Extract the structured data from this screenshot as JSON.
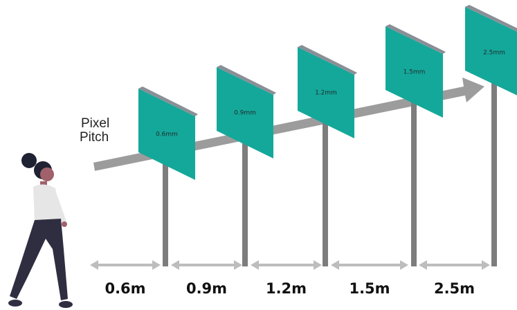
{
  "axis_label": [
    "Pixel",
    "Pitch"
  ],
  "panels": [
    "0.6mm",
    "0.9mm",
    "1.2mm",
    "1.5mm",
    "2.5mm"
  ],
  "distances": [
    "0.6m",
    "0.9m",
    "1.2m",
    "1.5m",
    "2.5m"
  ]
}
